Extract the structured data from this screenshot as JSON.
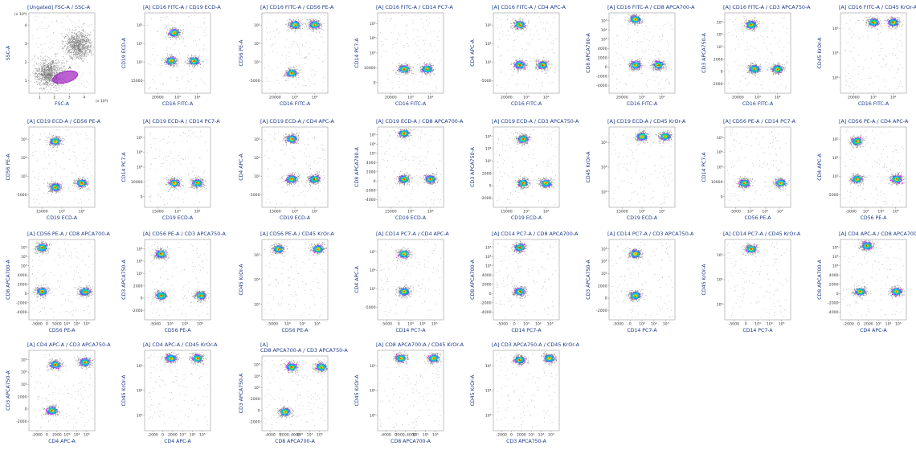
{
  "chart_data": [
    {
      "type": "scatter",
      "title": "[Ungated] FSC-A / SSC-A",
      "xlabel": "FSC-A",
      "ylabel": "SSC-A",
      "x_multiplier": "(x 10⁶)",
      "y_multiplier": "(x 10⁶)",
      "x_ticks": [
        "1",
        "2",
        "3",
        "4"
      ],
      "y_ticks": [
        "1",
        "2",
        "3",
        "4"
      ],
      "gate_label": "A",
      "gate_color": "#a020c0",
      "clusters": [
        {
          "x": 0.3,
          "y": 0.25,
          "size": "large"
        },
        {
          "x": 0.75,
          "y": 0.6,
          "size": "large"
        }
      ]
    },
    {
      "type": "scatter",
      "title": "[A] CD16 FITC-A / CD19 ECD-A",
      "xlabel": "CD16 FITC-A",
      "ylabel": "CD19 ECD-A",
      "x_ticks": [
        "20000",
        "10³",
        "10⁴"
      ],
      "y_ticks": [
        "15000",
        "10³",
        "10⁴",
        "10⁵"
      ],
      "clusters": [
        {
          "x": 0.45,
          "y": 0.75
        },
        {
          "x": 0.4,
          "y": 0.4
        },
        {
          "x": 0.75,
          "y": 0.4
        }
      ]
    },
    {
      "type": "scatter",
      "title": "[A] CD16 FITC-A / CD56 PE-A",
      "xlabel": "CD16 FITC-A",
      "ylabel": "CD56 PE-A",
      "x_ticks": [
        "20000",
        "10³",
        "10⁴"
      ],
      "y_ticks": [
        "-5000",
        "10³",
        "10⁴",
        "10⁵"
      ],
      "clusters": [
        {
          "x": 0.45,
          "y": 0.25
        },
        {
          "x": 0.5,
          "y": 0.85
        },
        {
          "x": 0.8,
          "y": 0.85
        }
      ]
    },
    {
      "type": "scatter",
      "title": "[A] CD16 FITC-A / CD14 PC7-A",
      "xlabel": "CD16 FITC-A",
      "ylabel": "CD14 PC7-A",
      "x_ticks": [
        "20000",
        "10³",
        "10⁴"
      ],
      "y_ticks": [
        "0",
        "10000",
        "10³",
        "10⁴",
        "10⁵"
      ],
      "clusters": [
        {
          "x": 0.4,
          "y": 0.3
        },
        {
          "x": 0.75,
          "y": 0.3
        }
      ]
    },
    {
      "type": "scatter",
      "title": "[A] CD16 FITC-A / CD4 APC-A",
      "xlabel": "CD16 FITC-A",
      "ylabel": "CD4 APC-A",
      "x_ticks": [
        "20000",
        "10³",
        "10⁴"
      ],
      "y_ticks": [
        "-5000",
        "10³",
        "10⁴",
        "10⁵"
      ],
      "clusters": [
        {
          "x": 0.4,
          "y": 0.85
        },
        {
          "x": 0.4,
          "y": 0.35
        },
        {
          "x": 0.75,
          "y": 0.35
        }
      ]
    },
    {
      "type": "scatter",
      "title": "[A] CD16 FITC-A / CD8 APCA700-A",
      "xlabel": "CD16 FITC-A",
      "ylabel": "CD8 APCA700-A",
      "x_ticks": [
        "20000",
        "10³",
        "10⁴"
      ],
      "y_ticks": [
        "-4000",
        "-2000",
        "0",
        "2000",
        "4000",
        "10³",
        "10⁴",
        "10⁵"
      ],
      "clusters": [
        {
          "x": 0.4,
          "y": 0.92
        },
        {
          "x": 0.4,
          "y": 0.35
        },
        {
          "x": 0.75,
          "y": 0.35
        }
      ]
    },
    {
      "type": "scatter",
      "title": "[A] CD16 FITC-A / CD3 APCA750-A",
      "xlabel": "CD16 FITC-A",
      "ylabel": "CD3 APCA750-A",
      "x_ticks": [
        "20000",
        "10³",
        "10⁴"
      ],
      "y_ticks": [
        "-2000",
        "0",
        "2000",
        "10³",
        "10⁴",
        "10⁵"
      ],
      "clusters": [
        {
          "x": 0.4,
          "y": 0.85
        },
        {
          "x": 0.45,
          "y": 0.3
        },
        {
          "x": 0.8,
          "y": 0.3
        }
      ]
    },
    {
      "type": "scatter",
      "title": "[A] CD16 FITC-A / CD45 KrOr-A",
      "xlabel": "CD16 FITC-A",
      "ylabel": "CD45 KrOr-A",
      "x_ticks": [
        "20000",
        "10³",
        "10⁴"
      ],
      "y_ticks": [
        "10³",
        "10⁴",
        "10⁵"
      ],
      "clusters": [
        {
          "x": 0.5,
          "y": 0.88
        },
        {
          "x": 0.8,
          "y": 0.88
        }
      ]
    },
    {
      "type": "scatter",
      "title": "[A] CD19 ECD-A / CD56 PE-A",
      "xlabel": "CD19 ECD-A",
      "ylabel": "CD56 PE-A",
      "x_ticks": [
        "15000",
        "10³",
        "10⁴"
      ],
      "y_ticks": [
        "-5000",
        "10³",
        "10⁴",
        "10⁵"
      ],
      "clusters": [
        {
          "x": 0.4,
          "y": 0.25
        },
        {
          "x": 0.4,
          "y": 0.82
        },
        {
          "x": 0.8,
          "y": 0.3
        }
      ]
    },
    {
      "type": "scatter",
      "title": "[A] CD19 ECD-A / CD14 PC7-A",
      "xlabel": "CD19 ECD-A",
      "ylabel": "CD14 PC7-A",
      "x_ticks": [
        "15000",
        "10³",
        "10⁴"
      ],
      "y_ticks": [
        "0",
        "10000",
        "10³",
        "10⁴",
        "10⁵"
      ],
      "clusters": [
        {
          "x": 0.45,
          "y": 0.3
        },
        {
          "x": 0.8,
          "y": 0.3
        }
      ]
    },
    {
      "type": "scatter",
      "title": "[A] CD19 ECD-A / CD4 APC-A",
      "xlabel": "CD19 ECD-A",
      "ylabel": "CD4 APC-A",
      "x_ticks": [
        "15000",
        "10³",
        "10⁴"
      ],
      "y_ticks": [
        "-5000",
        "10³",
        "10⁴",
        "10⁵"
      ],
      "clusters": [
        {
          "x": 0.45,
          "y": 0.85
        },
        {
          "x": 0.45,
          "y": 0.35
        },
        {
          "x": 0.8,
          "y": 0.35
        }
      ]
    },
    {
      "type": "scatter",
      "title": "[A] CD19 ECD-A / CD8 APCA700-A",
      "xlabel": "CD19 ECD-A",
      "ylabel": "CD8 APCA700-A",
      "x_ticks": [
        "15000",
        "10³",
        "10⁴"
      ],
      "y_ticks": [
        "-4000",
        "-2000",
        "0",
        "2000",
        "4000",
        "10³",
        "10⁴",
        "10⁵"
      ],
      "clusters": [
        {
          "x": 0.4,
          "y": 0.92
        },
        {
          "x": 0.4,
          "y": 0.35
        },
        {
          "x": 0.8,
          "y": 0.35
        }
      ]
    },
    {
      "type": "scatter",
      "title": "[A] CD19 ECD-A / CD3 APCA750-A",
      "xlabel": "CD19 ECD-A",
      "ylabel": "CD3 APCA750-A",
      "x_ticks": [
        "15000",
        "10³",
        "10⁴"
      ],
      "y_ticks": [
        "-2000",
        "0",
        "2000",
        "10³",
        "10⁴",
        "10⁵"
      ],
      "clusters": [
        {
          "x": 0.45,
          "y": 0.85
        },
        {
          "x": 0.45,
          "y": 0.3
        },
        {
          "x": 0.8,
          "y": 0.3
        }
      ]
    },
    {
      "type": "scatter",
      "title": "[A] CD19 ECD-A / CD45 KrOr-A",
      "xlabel": "CD19 ECD-A",
      "ylabel": "CD45 KrOr-A",
      "x_ticks": [
        "15000",
        "10³",
        "10⁴"
      ],
      "y_ticks": [
        "10³",
        "10⁴",
        "10⁵"
      ],
      "clusters": [
        {
          "x": 0.5,
          "y": 0.88
        },
        {
          "x": 0.85,
          "y": 0.88
        }
      ]
    },
    {
      "type": "scatter",
      "title": "[A] CD56 PE-A / CD14 PC7-A",
      "xlabel": "CD56 PE-A",
      "ylabel": "CD14 PC7-A",
      "x_ticks": [
        "-5000",
        "10³",
        "10⁴",
        "10⁵"
      ],
      "y_ticks": [
        "0",
        "10000",
        "10³",
        "10⁴",
        "10⁵"
      ],
      "clusters": [
        {
          "x": 0.3,
          "y": 0.3
        },
        {
          "x": 0.85,
          "y": 0.3
        }
      ]
    },
    {
      "type": "scatter",
      "title": "[A] CD56 PE-A / CD4 APC-A",
      "xlabel": "CD56 PE-A",
      "ylabel": "CD4 APC-A",
      "x_ticks": [
        "-5000",
        "10³",
        "10⁴",
        "10⁵"
      ],
      "y_ticks": [
        "-5000",
        "10³",
        "10⁴",
        "10⁵"
      ],
      "clusters": [
        {
          "x": 0.25,
          "y": 0.82
        },
        {
          "x": 0.25,
          "y": 0.35
        },
        {
          "x": 0.85,
          "y": 0.35
        }
      ]
    },
    {
      "type": "scatter",
      "title": "[A] CD56 PE-A / CD8 APCA700-A",
      "xlabel": "CD56 PE-A",
      "ylabel": "CD8 APCA700-A",
      "x_ticks": [
        "-5000",
        "0",
        "5000",
        "10³",
        "10⁴",
        "10⁵"
      ],
      "y_ticks": [
        "-4000",
        "-2000",
        "0",
        "2000",
        "4000",
        "10³",
        "10⁴",
        "10⁵"
      ],
      "clusters": [
        {
          "x": 0.2,
          "y": 0.9
        },
        {
          "x": 0.2,
          "y": 0.35
        },
        {
          "x": 0.85,
          "y": 0.35
        }
      ]
    },
    {
      "type": "scatter",
      "title": "[A] CD56 PE-A / CD3 APCA750-A",
      "xlabel": "CD56 PE-A",
      "ylabel": "CD3 APCA750-A",
      "x_ticks": [
        "-5000",
        "10³",
        "10⁴",
        "10⁵"
      ],
      "y_ticks": [
        "-2000",
        "0",
        "2000",
        "10³",
        "10⁴",
        "10⁵"
      ],
      "clusters": [
        {
          "x": 0.25,
          "y": 0.82
        },
        {
          "x": 0.25,
          "y": 0.3
        },
        {
          "x": 0.85,
          "y": 0.3
        }
      ]
    },
    {
      "type": "scatter",
      "title": "[A] CD56 PE-A / CD45 KrOr-A",
      "xlabel": "CD56 PE-A",
      "ylabel": "CD45 KrOr-A",
      "x_ticks": [
        "-5000",
        "10³",
        "10⁴",
        "10⁵"
      ],
      "y_ticks": [
        "10³",
        "10⁴",
        "10⁵"
      ],
      "clusters": [
        {
          "x": 0.25,
          "y": 0.88
        },
        {
          "x": 0.85,
          "y": 0.88
        }
      ]
    },
    {
      "type": "scatter",
      "title": "[A] CD14 PC7-A / CD4 APC-A",
      "xlabel": "CD14 PC7-A",
      "ylabel": "CD4 APC-A",
      "x_ticks": [
        "-5000",
        "0",
        "10³",
        "10⁴",
        "10⁵"
      ],
      "y_ticks": [
        "-5000",
        "10³",
        "10⁴",
        "10⁵"
      ],
      "clusters": [
        {
          "x": 0.4,
          "y": 0.82
        },
        {
          "x": 0.4,
          "y": 0.35
        }
      ]
    },
    {
      "type": "scatter",
      "title": "[A] CD14 PC7-A / CD8 APCA700-A",
      "xlabel": "CD14 PC7-A",
      "ylabel": "CD8 APCA700-A",
      "x_ticks": [
        "-5000",
        "0",
        "10³",
        "10⁴",
        "10⁵"
      ],
      "y_ticks": [
        "-4000",
        "-2000",
        "0",
        "2000",
        "4000",
        "10³",
        "10⁴",
        "10⁵"
      ],
      "clusters": [
        {
          "x": 0.4,
          "y": 0.9
        },
        {
          "x": 0.4,
          "y": 0.35
        }
      ]
    },
    {
      "type": "scatter",
      "title": "[A] CD14 PC7-A / CD3 APCA750-A",
      "xlabel": "CD14 PC7-A",
      "ylabel": "CD3 APCA750-A",
      "x_ticks": [
        "-5000",
        "0",
        "10³",
        "10⁴",
        "10⁵"
      ],
      "y_ticks": [
        "-2000",
        "0",
        "2000",
        "10³",
        "10⁴",
        "10⁵"
      ],
      "clusters": [
        {
          "x": 0.4,
          "y": 0.82
        },
        {
          "x": 0.4,
          "y": 0.3
        }
      ]
    },
    {
      "type": "scatter",
      "title": "[A] CD14 PC7-A / CD45 KrOr-A",
      "xlabel": "CD14 PC7-A",
      "ylabel": "CD45 KrOr-A",
      "x_ticks": [
        "-5000",
        "0",
        "10³",
        "10⁴",
        "10⁵"
      ],
      "y_ticks": [
        "10³",
        "10⁴",
        "10⁵"
      ],
      "clusters": [
        {
          "x": 0.4,
          "y": 0.88
        }
      ]
    },
    {
      "type": "scatter",
      "title": "[A] CD4 APC-A / CD8 APCA700-A",
      "xlabel": "CD4 APC-A",
      "ylabel": "CD8 APCA700-A",
      "x_ticks": [
        "-2000",
        "0",
        "2000",
        "10³",
        "10⁴",
        "10⁵"
      ],
      "y_ticks": [
        "-4000",
        "-2000",
        "0",
        "2000",
        "4000",
        "10³",
        "10⁴",
        "10⁵"
      ],
      "clusters": [
        {
          "x": 0.4,
          "y": 0.92
        },
        {
          "x": 0.3,
          "y": 0.35
        },
        {
          "x": 0.85,
          "y": 0.35
        }
      ]
    },
    {
      "type": "scatter",
      "title": "[A] CD4 APC-A / CD3 APCA750-A",
      "xlabel": "CD4 APC-A",
      "ylabel": "CD3 APCA750-A",
      "x_ticks": [
        "-2000",
        "0",
        "2000",
        "10³",
        "10⁴",
        "10⁵"
      ],
      "y_ticks": [
        "-2000",
        "0",
        "2000",
        "10³",
        "10⁴",
        "10⁵"
      ],
      "clusters": [
        {
          "x": 0.4,
          "y": 0.82
        },
        {
          "x": 0.85,
          "y": 0.85
        },
        {
          "x": 0.35,
          "y": 0.25
        }
      ]
    },
    {
      "type": "scatter",
      "title": "[A] CD4 APC-A / CD45 KrOr-A",
      "xlabel": "CD4 APC-A",
      "ylabel": "CD45 KrOr-A",
      "x_ticks": [
        "-2000",
        "0",
        "2000",
        "10³",
        "10⁴",
        "10⁵"
      ],
      "y_ticks": [
        "10³",
        "10⁴",
        "10⁵"
      ],
      "clusters": [
        {
          "x": 0.4,
          "y": 0.9
        },
        {
          "x": 0.8,
          "y": 0.9
        }
      ]
    },
    {
      "type": "scatter",
      "title": "[A] CD8 APCA700-A / CD3 APCA750-A",
      "title_lines": [
        "[A]",
        "CD8 APCA700-A / CD3 APCA750-A"
      ],
      "xlabel": "CD8 APCA700-A",
      "ylabel": "CD3 APCA750-A",
      "x_ticks": [
        "-4000",
        "0",
        "2000–4000",
        "10³",
        "10⁴",
        "10⁵"
      ],
      "y_ticks": [
        "-2000",
        "0",
        "2000",
        "10³",
        "10⁴",
        "10⁵"
      ],
      "clusters": [
        {
          "x": 0.45,
          "y": 0.85
        },
        {
          "x": 0.9,
          "y": 0.85
        },
        {
          "x": 0.35,
          "y": 0.25
        }
      ]
    },
    {
      "type": "scatter",
      "title": "[A] CD8 APCA700-A / CD45 KrOr-A",
      "xlabel": "CD8 APCA700-A",
      "ylabel": "CD45 KrOr-A",
      "x_ticks": [
        "-4000",
        "0",
        "2000–4000",
        "10³",
        "10⁴",
        "10⁵"
      ],
      "y_ticks": [
        "10³",
        "10⁴",
        "10⁵"
      ],
      "clusters": [
        {
          "x": 0.35,
          "y": 0.9
        },
        {
          "x": 0.85,
          "y": 0.9
        }
      ]
    },
    {
      "type": "scatter",
      "title": "[A] CD3 APCA750-A / CD45 KrOr-A",
      "xlabel": "CD3 APCA750-A",
      "ylabel": "CD45 KrOr-A",
      "x_ticks": [
        "-2000",
        "0",
        "2000",
        "10³",
        "10⁴",
        "10⁵"
      ],
      "y_ticks": [
        "10³",
        "10⁴",
        "10⁵"
      ],
      "clusters": [
        {
          "x": 0.4,
          "y": 0.88
        },
        {
          "x": 0.85,
          "y": 0.9
        }
      ]
    }
  ]
}
